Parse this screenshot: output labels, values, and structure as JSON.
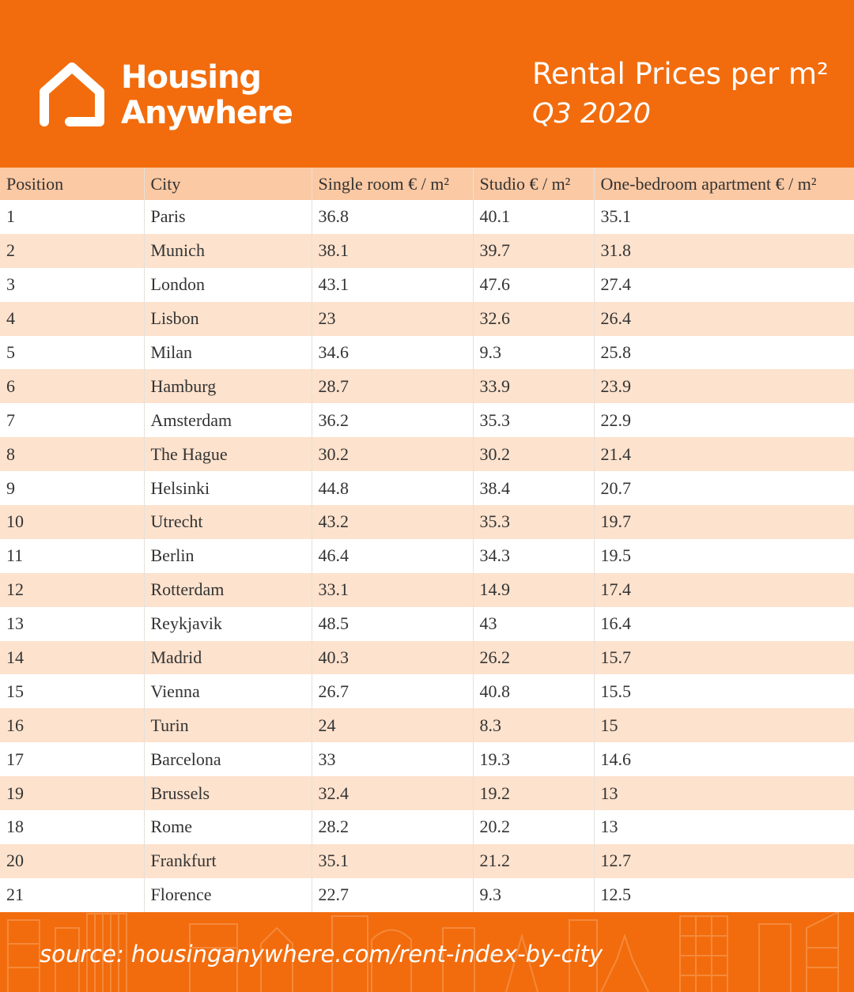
{
  "brand": {
    "name_line1": "Housing",
    "name_line2": "Anywhere",
    "icon": "house-icon",
    "color": "#f26c0d"
  },
  "title": {
    "main": "Rental Prices per m²",
    "sub": "Q3 2020"
  },
  "table": {
    "headers": [
      "Position",
      "City",
      "Single room € / m²",
      "Studio € / m²",
      "One-bedroom apartment € / m²"
    ],
    "rows": [
      [
        "1",
        "Paris",
        "36.8",
        "40.1",
        "35.1"
      ],
      [
        "2",
        "Munich",
        "38.1",
        "39.7",
        "31.8"
      ],
      [
        "3",
        "London",
        "43.1",
        "47.6",
        "27.4"
      ],
      [
        "4",
        "Lisbon",
        "23",
        "32.6",
        "26.4"
      ],
      [
        "5",
        "Milan",
        "34.6",
        "9.3",
        "25.8"
      ],
      [
        "6",
        "Hamburg",
        "28.7",
        "33.9",
        "23.9"
      ],
      [
        "7",
        "Amsterdam",
        "36.2",
        "35.3",
        "22.9"
      ],
      [
        "8",
        "The Hague",
        "30.2",
        "30.2",
        "21.4"
      ],
      [
        "9",
        "Helsinki",
        "44.8",
        "38.4",
        "20.7"
      ],
      [
        "10",
        "Utrecht",
        "43.2",
        "35.3",
        "19.7"
      ],
      [
        "11",
        "Berlin",
        "46.4",
        "34.3",
        "19.5"
      ],
      [
        "12",
        "Rotterdam",
        "33.1",
        "14.9",
        "17.4"
      ],
      [
        "13",
        "Reykjavik",
        "48.5",
        "43",
        "16.4"
      ],
      [
        "14",
        "Madrid",
        "40.3",
        "26.2",
        "15.7"
      ],
      [
        "15",
        "Vienna",
        "26.7",
        "40.8",
        "15.5"
      ],
      [
        "16",
        "Turin",
        "24",
        "8.3",
        "15"
      ],
      [
        "17",
        "Barcelona",
        "33",
        "19.3",
        "14.6"
      ],
      [
        "19",
        "Brussels",
        "32.4",
        "19.2",
        "13"
      ],
      [
        "18",
        "Rome",
        "28.2",
        "20.2",
        "13"
      ],
      [
        "20",
        "Frankfurt",
        "35.1",
        "21.2",
        "12.7"
      ],
      [
        "21",
        "Florence",
        "22.7",
        "9.3",
        "12.5"
      ]
    ]
  },
  "footer": {
    "source": "source: housinganywhere.com/rent-index-by-city",
    "decoration": "city-skyline-illustration"
  }
}
